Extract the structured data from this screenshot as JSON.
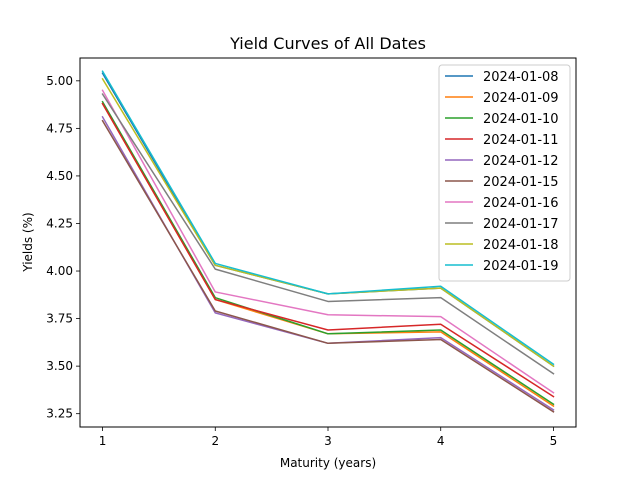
{
  "chart_data": {
    "type": "line",
    "title": "Yield Curves of All Dates",
    "xlabel": "Maturity (years)",
    "ylabel": "Yields (%)",
    "x": [
      1,
      2,
      3,
      4,
      5
    ],
    "xlim": [
      0.8,
      5.2
    ],
    "ylim": [
      3.18,
      5.12
    ],
    "xticks": [
      "1",
      "2",
      "3",
      "4",
      "5"
    ],
    "yticks": [
      "3.25",
      "3.50",
      "3.75",
      "4.00",
      "4.25",
      "4.50",
      "4.75",
      "5.00"
    ],
    "grid": false,
    "legend_position": "top-right",
    "series": [
      {
        "name": "2024-01-08",
        "color": "#1f77b4",
        "values": [
          5.04,
          4.03,
          3.88,
          3.91,
          3.5
        ]
      },
      {
        "name": "2024-01-09",
        "color": "#ff7f0e",
        "values": [
          4.88,
          3.85,
          3.67,
          3.68,
          3.29
        ]
      },
      {
        "name": "2024-01-10",
        "color": "#2ca02c",
        "values": [
          4.89,
          3.86,
          3.67,
          3.69,
          3.3
        ]
      },
      {
        "name": "2024-01-11",
        "color": "#d62728",
        "values": [
          4.88,
          3.85,
          3.69,
          3.72,
          3.34
        ]
      },
      {
        "name": "2024-01-12",
        "color": "#9467bd",
        "values": [
          4.81,
          3.78,
          3.62,
          3.65,
          3.27
        ]
      },
      {
        "name": "2024-01-15",
        "color": "#8c564b",
        "values": [
          4.79,
          3.79,
          3.62,
          3.64,
          3.26
        ]
      },
      {
        "name": "2024-01-16",
        "color": "#e377c2",
        "values": [
          4.95,
          3.89,
          3.77,
          3.76,
          3.36
        ]
      },
      {
        "name": "2024-01-17",
        "color": "#7f7f7f",
        "values": [
          4.93,
          4.01,
          3.84,
          3.86,
          3.46
        ]
      },
      {
        "name": "2024-01-18",
        "color": "#bcbd22",
        "values": [
          5.01,
          4.03,
          3.88,
          3.91,
          3.5
        ]
      },
      {
        "name": "2024-01-19",
        "color": "#17becf",
        "values": [
          5.05,
          4.04,
          3.88,
          3.92,
          3.51
        ]
      }
    ]
  }
}
